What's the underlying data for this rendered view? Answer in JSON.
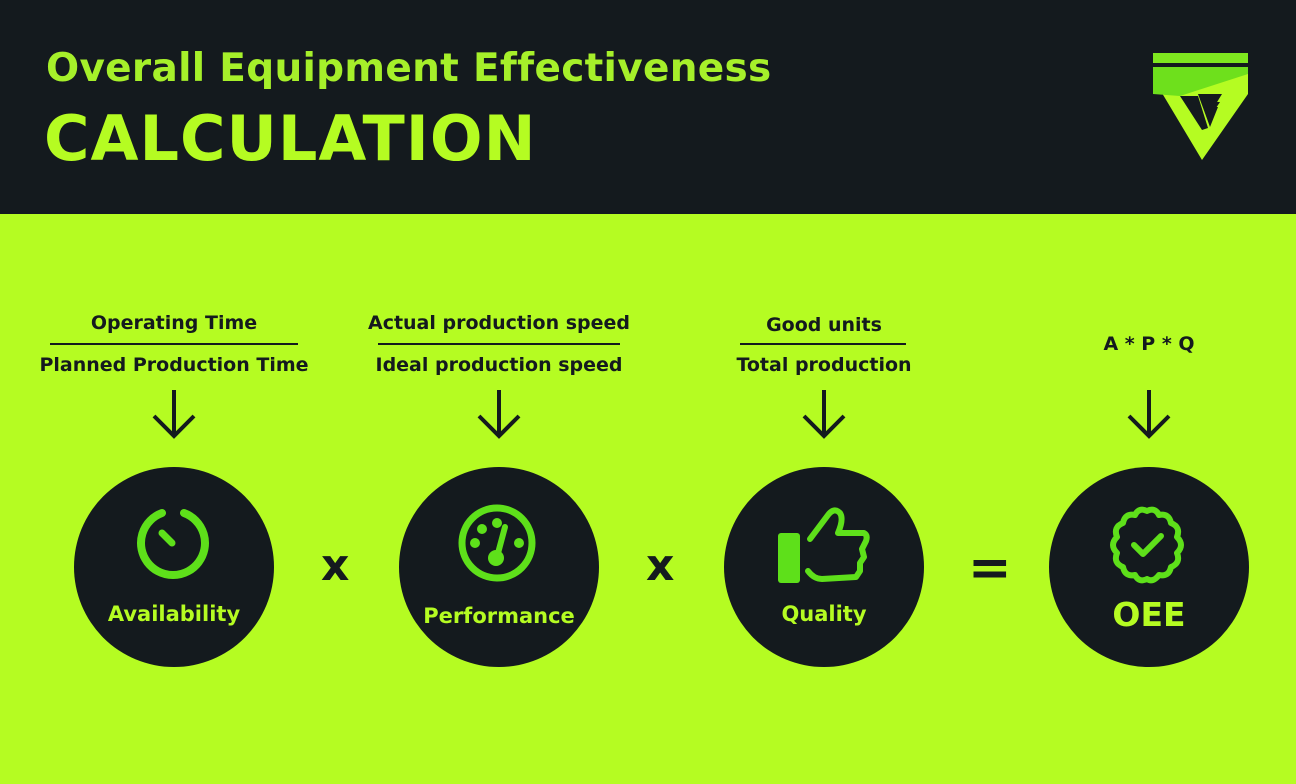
{
  "header": {
    "subtitle": "Overall Equipment Effectiveness",
    "title": "CALCULATION",
    "logo": "G"
  },
  "colors": {
    "background": "#b5fc22",
    "dark": "#141a1e",
    "icon_green": "#5ee01a"
  },
  "factors": [
    {
      "numerator": "Operating Time",
      "denominator": "Planned Production Time",
      "label": "Availability",
      "icon": "timer-icon"
    },
    {
      "numerator": "Actual production speed",
      "denominator": "Ideal production speed",
      "label": "Performance",
      "icon": "gauge-icon"
    },
    {
      "numerator": "Good units",
      "denominator": "Total production",
      "label": "Quality",
      "icon": "thumbs-up-icon"
    },
    {
      "formula": "A * P * Q",
      "label": "OEE",
      "icon": "badge-check-icon"
    }
  ],
  "operators": [
    "x",
    "x",
    "="
  ]
}
